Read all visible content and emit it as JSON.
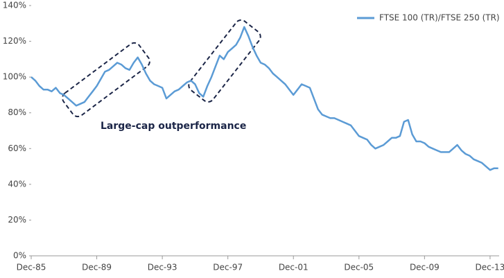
{
  "chart_data": {
    "type": "line",
    "categories": [
      "Dec-85",
      null,
      null,
      null,
      null,
      null,
      null,
      null,
      null,
      null,
      null,
      null,
      null,
      null,
      null,
      null,
      "Dec-89",
      null,
      null,
      null,
      null,
      null,
      null,
      null,
      null,
      null,
      null,
      null,
      null,
      null,
      null,
      null,
      "Dec-93",
      null,
      null,
      null,
      null,
      null,
      null,
      null,
      null,
      null,
      null,
      null,
      null,
      null,
      null,
      null,
      "Dec-97",
      null,
      null,
      null,
      null,
      null,
      null,
      null,
      null,
      null,
      null,
      null,
      null,
      null,
      null,
      null,
      "Dec-01",
      null,
      null,
      null,
      null,
      null,
      null,
      null,
      null,
      null,
      null,
      null,
      null,
      null,
      null,
      null,
      "Dec-05",
      null,
      null,
      null,
      null,
      null,
      null,
      null,
      null,
      null,
      null,
      null,
      null,
      null,
      null,
      null,
      "Dec-09",
      null,
      null,
      null,
      null,
      null,
      null,
      null,
      null,
      null,
      null,
      null,
      null,
      null,
      null,
      null,
      "Dec-13",
      null,
      null
    ],
    "series": [
      {
        "name": "FTSE 100 (TR)/FTSE 250 (TR)",
        "color": "#5b9bd5",
        "values": [
          100,
          98,
          95,
          93,
          93,
          92,
          94,
          91,
          90,
          88,
          86,
          84,
          85,
          86,
          89,
          92,
          95,
          99,
          103,
          104,
          106,
          108,
          107,
          105,
          104,
          108,
          111,
          107,
          102,
          98,
          96,
          95,
          94,
          88,
          90,
          92,
          93,
          95,
          97,
          98,
          96,
          91,
          89,
          95,
          100,
          106,
          112,
          110,
          114,
          116,
          118,
          122,
          128,
          123,
          117,
          112,
          108,
          107,
          105,
          102,
          100,
          98,
          96,
          93,
          90,
          93,
          96,
          95,
          94,
          88,
          82,
          79,
          78,
          77,
          77,
          76,
          75,
          74,
          73,
          70,
          67,
          66,
          65,
          62,
          60,
          61,
          62,
          64,
          66,
          66,
          67,
          75,
          76,
          68,
          64,
          64,
          63,
          61,
          60,
          59,
          58,
          58,
          58,
          60,
          62,
          59,
          57,
          56,
          54,
          53,
          52,
          50,
          48,
          49,
          49
        ]
      }
    ],
    "ylim": [
      0,
      140
    ],
    "yticks": [
      {
        "value": 0,
        "label": "0%"
      },
      {
        "value": 20,
        "label": "20%"
      },
      {
        "value": 40,
        "label": "40%"
      },
      {
        "value": 60,
        "label": "60%"
      },
      {
        "value": 80,
        "label": "80%"
      },
      {
        "value": 100,
        "label": "100%"
      },
      {
        "value": 120,
        "label": "120%"
      },
      {
        "value": 140,
        "label": "140%"
      }
    ],
    "annotation": "Large-cap outperformance",
    "legend": "top-right",
    "grid": false
  }
}
